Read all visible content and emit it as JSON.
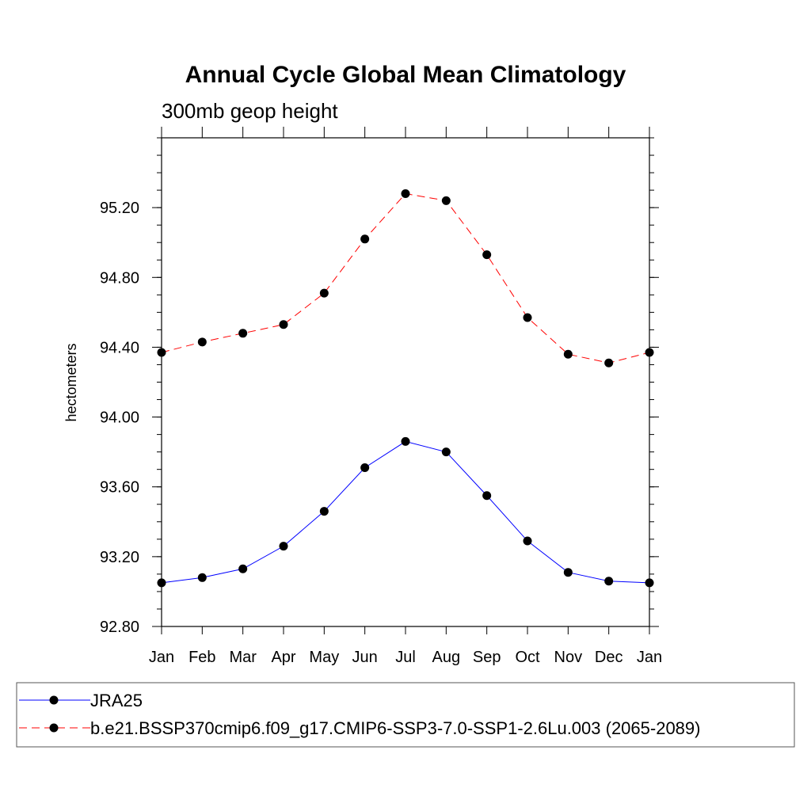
{
  "chart_data": {
    "type": "line",
    "title": "Annual Cycle Global Mean Climatology",
    "subtitle": "300mb geop height",
    "xlabel": "",
    "ylabel": "hectometers",
    "categories": [
      "Jan",
      "Feb",
      "Mar",
      "Apr",
      "May",
      "Jun",
      "Jul",
      "Aug",
      "Sep",
      "Oct",
      "Nov",
      "Dec",
      "Jan"
    ],
    "ylim": [
      92.8,
      95.6
    ],
    "yticks": [
      92.8,
      93.2,
      93.6,
      94.0,
      94.4,
      94.8,
      95.2
    ],
    "ytick_labels": [
      "92.80",
      "93.20",
      "93.60",
      "94.00",
      "94.40",
      "94.80",
      "95.20"
    ],
    "grid": false,
    "legend_position": "bottom",
    "series": [
      {
        "name": "JRA25",
        "color": "#0000ff",
        "line_style": "solid",
        "marker": "filled-circle",
        "values": [
          93.05,
          93.08,
          93.13,
          93.26,
          93.46,
          93.71,
          93.86,
          93.8,
          93.55,
          93.29,
          93.11,
          93.06,
          93.05
        ]
      },
      {
        "name": "b.e21.BSSP370cmip6.f09_g17.CMIP6-SSP3-7.0-SSP1-2.6Lu.003 (2065-2089)",
        "color": "#ff0000",
        "line_style": "dashed",
        "marker": "filled-circle",
        "values": [
          94.37,
          94.43,
          94.48,
          94.53,
          94.71,
          95.02,
          95.28,
          95.24,
          94.93,
          94.57,
          94.36,
          94.31,
          94.37
        ]
      }
    ]
  }
}
